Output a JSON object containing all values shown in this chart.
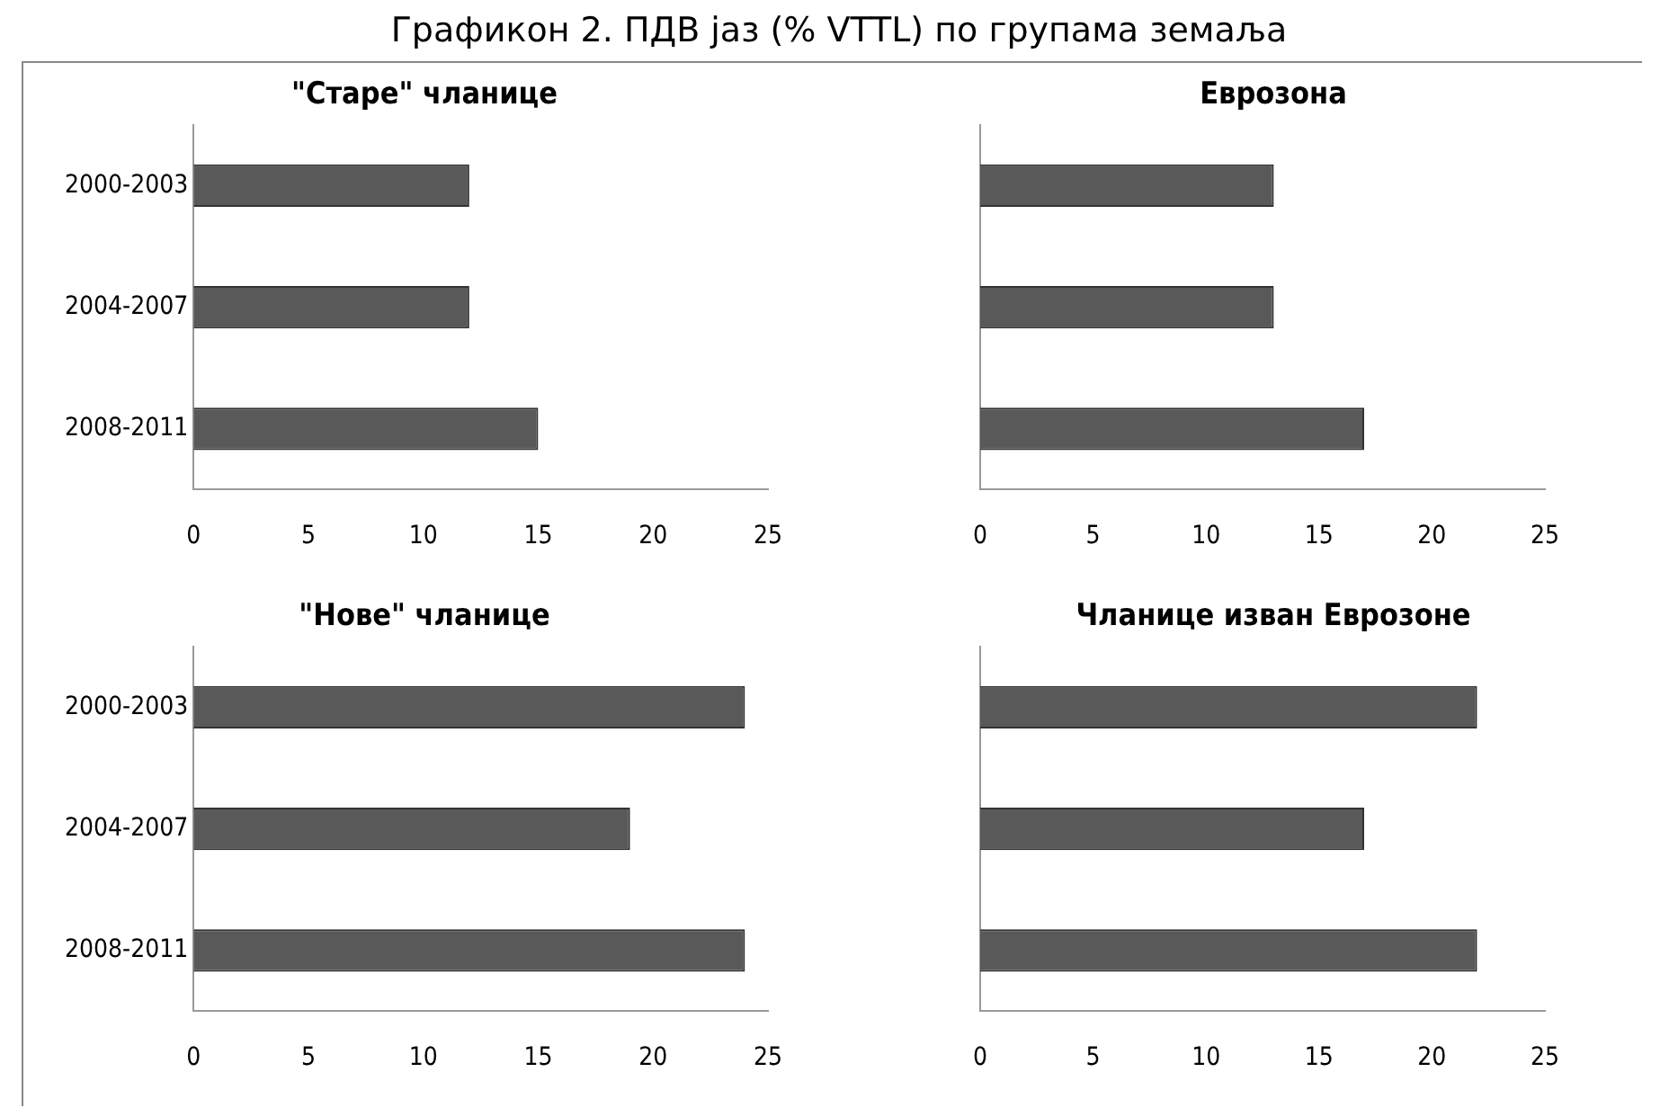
{
  "chart_data": [
    {
      "type": "bar",
      "orientation": "horizontal",
      "title": "\"Старе\" чланице",
      "annotations": [
        "Графикон 2. ПДВ јаз (% VTTL) по групама земаља"
      ],
      "categories": [
        "2000-2003",
        "2004-2007",
        "2008-2011"
      ],
      "values": [
        12,
        12,
        15
      ],
      "color": "#595959",
      "xlim": [
        0,
        25
      ],
      "xticks": [
        0,
        5,
        10,
        15,
        20,
        25
      ],
      "grid": false
    },
    {
      "type": "bar",
      "orientation": "horizontal",
      "title": "Еврозона",
      "categories": [
        null,
        null,
        null
      ],
      "values": [
        13,
        13,
        17
      ],
      "color": "#595959",
      "xlim": [
        0,
        25
      ],
      "xticks": [
        0,
        5,
        10,
        15,
        20,
        25
      ],
      "grid": false,
      "tick_labels": "x"
    },
    {
      "type": "bar",
      "orientation": "horizontal",
      "title": "\"Нове\" чланице",
      "categories": [
        "2000-2003",
        "2004-2007",
        "2008-2011"
      ],
      "values": [
        24,
        19,
        24
      ],
      "color": "#595959",
      "xlim": [
        0,
        25
      ],
      "xticks": [
        0,
        5,
        10,
        15,
        20,
        25
      ],
      "grid": false
    },
    {
      "type": "bar",
      "orientation": "horizontal",
      "title": "Чланице изван Еврозоне",
      "categories": [
        null,
        null,
        null
      ],
      "values": [
        22,
        17,
        22
      ],
      "color": "#595959",
      "xlim": [
        0,
        25
      ],
      "xticks": [
        0,
        5,
        10,
        15,
        20,
        25
      ],
      "grid": false,
      "tick_labels": "x"
    }
  ]
}
